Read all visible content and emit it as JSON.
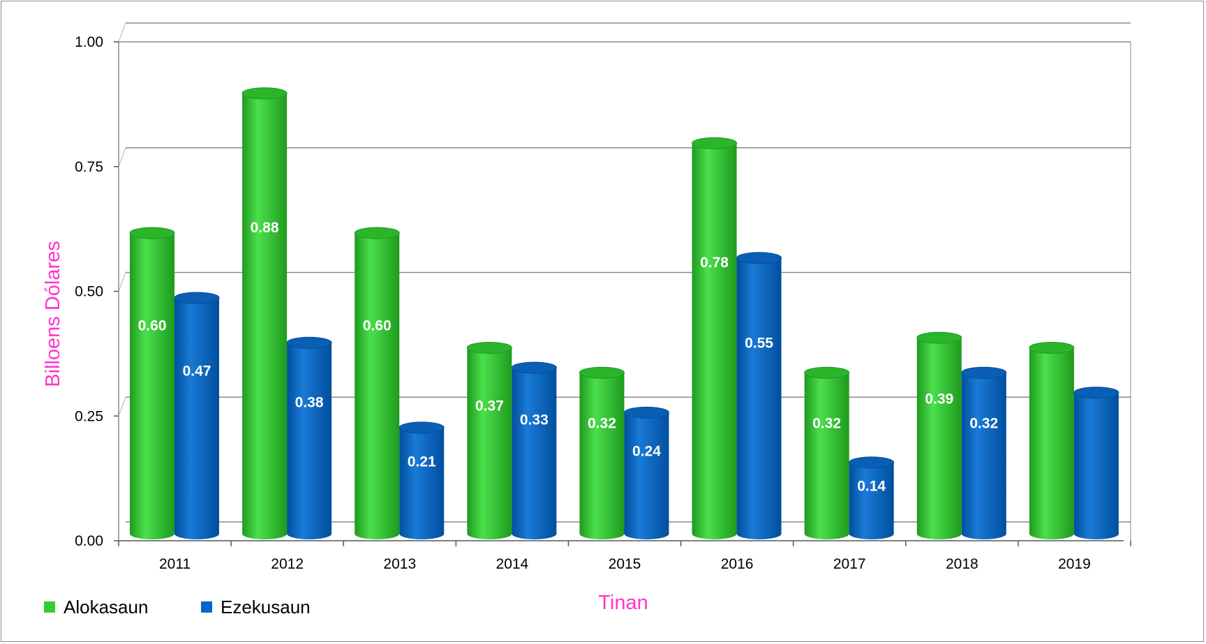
{
  "chart_data": {
    "type": "bar",
    "style": "3d-cylinder",
    "categories": [
      "2011",
      "2012",
      "2013",
      "2014",
      "2015",
      "2016",
      "2017",
      "2018",
      "2019"
    ],
    "series": [
      {
        "name": "Alokasaun",
        "color": "#33cc33",
        "values": [
          0.6,
          0.88,
          0.6,
          0.37,
          0.32,
          0.78,
          0.32,
          0.39,
          0.37
        ],
        "labels": [
          "0.60",
          "0.88",
          "0.60",
          "0.37",
          "0.32",
          "0.78",
          "0.32",
          "0.39",
          ""
        ]
      },
      {
        "name": "Ezekusaun",
        "color": "#0066cc",
        "values": [
          0.47,
          0.38,
          0.21,
          0.33,
          0.24,
          0.55,
          0.14,
          0.32,
          0.28
        ],
        "labels": [
          "0.47",
          "0.38",
          "0.21",
          "0.33",
          "0.24",
          "0.55",
          "0.14",
          "0.32",
          ""
        ]
      }
    ],
    "xlabel": "Tinan",
    "ylabel": "Billoens Dólares",
    "ylim": [
      0,
      1
    ],
    "yticks": [
      "0.00",
      "0.25",
      "0.50",
      "0.75",
      "1.00"
    ],
    "grid": true,
    "legend": "bottom-left",
    "title_color": "#ff33cc"
  }
}
